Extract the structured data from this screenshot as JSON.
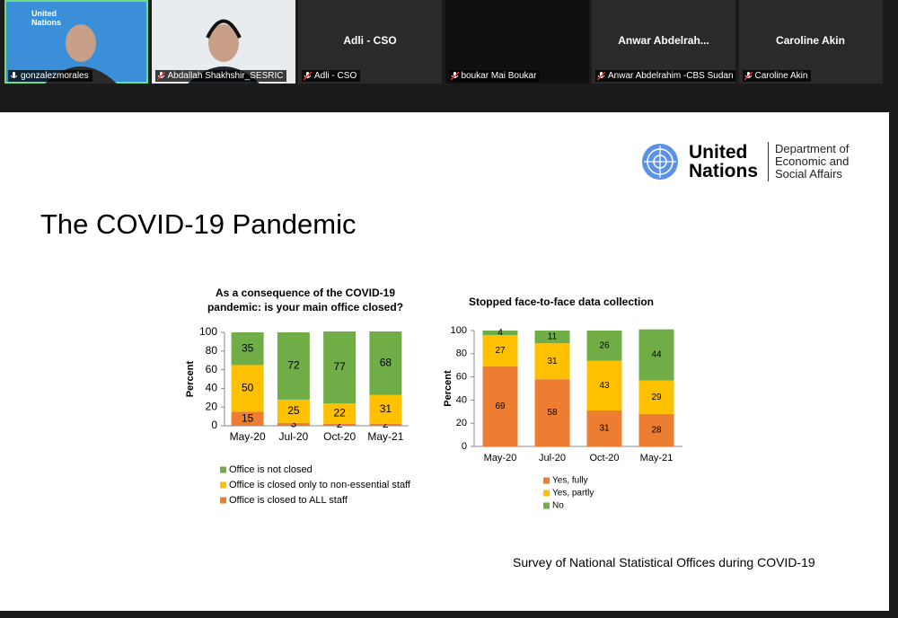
{
  "participants": [
    {
      "label": "gonzalezmorales",
      "logo": "United Nations"
    },
    {
      "label": "Abdallah Shakhshir_SESRIC"
    },
    {
      "name": "Adli - CSO",
      "label": "Adli - CSO"
    },
    {
      "label": "boukar Mai Boukar"
    },
    {
      "name": "Anwar  Abdelrah...",
      "label": "Anwar Abdelrahim -CBS Sudan"
    },
    {
      "name": "Caroline Akin",
      "label": "Caroline Akin"
    }
  ],
  "slide": {
    "logo_name": "United Nations",
    "department": "Department of Economic and Social Affairs",
    "title": "The COVID-19 Pandemic",
    "footer": "Survey of National Statistical Offices during COVID-19"
  },
  "chart_data": [
    {
      "type": "bar",
      "stacked": true,
      "title": "As a consequence of the COVID-19 pandemic: is your main office closed?",
      "y_label": "Percent",
      "categories": [
        "May-20",
        "Jul-20",
        "Oct-20",
        "May-21"
      ],
      "series": [
        {
          "name": "Office is closed to ALL staff",
          "color": "#ed7d31",
          "values": [
            15,
            3,
            2,
            2
          ]
        },
        {
          "name": "Office is closed only to non-essential staff",
          "color": "#ffc000",
          "values": [
            50,
            25,
            22,
            31
          ]
        },
        {
          "name": "Office is not closed",
          "color": "#70ad47",
          "values": [
            35,
            72,
            77,
            68
          ]
        }
      ],
      "ylim": [
        0,
        100
      ],
      "yticks": [
        0,
        20,
        40,
        60,
        80,
        100
      ],
      "legend": "bottom"
    },
    {
      "type": "bar",
      "stacked": true,
      "title": "Stopped face-to-face data collection",
      "y_label": "Percent",
      "categories": [
        "May-20",
        "Jul-20",
        "Oct-20",
        "May-21"
      ],
      "series": [
        {
          "name": "Yes, fully",
          "color": "#ed7d31",
          "values": [
            69,
            58,
            31,
            28
          ]
        },
        {
          "name": "Yes, partly",
          "color": "#ffc000",
          "values": [
            27,
            31,
            43,
            29
          ]
        },
        {
          "name": "No",
          "color": "#70ad47",
          "values": [
            4,
            11,
            26,
            44
          ]
        }
      ],
      "ylim": [
        0,
        100
      ],
      "yticks": [
        0,
        20,
        40,
        60,
        80,
        100
      ],
      "legend": "bottom"
    }
  ]
}
